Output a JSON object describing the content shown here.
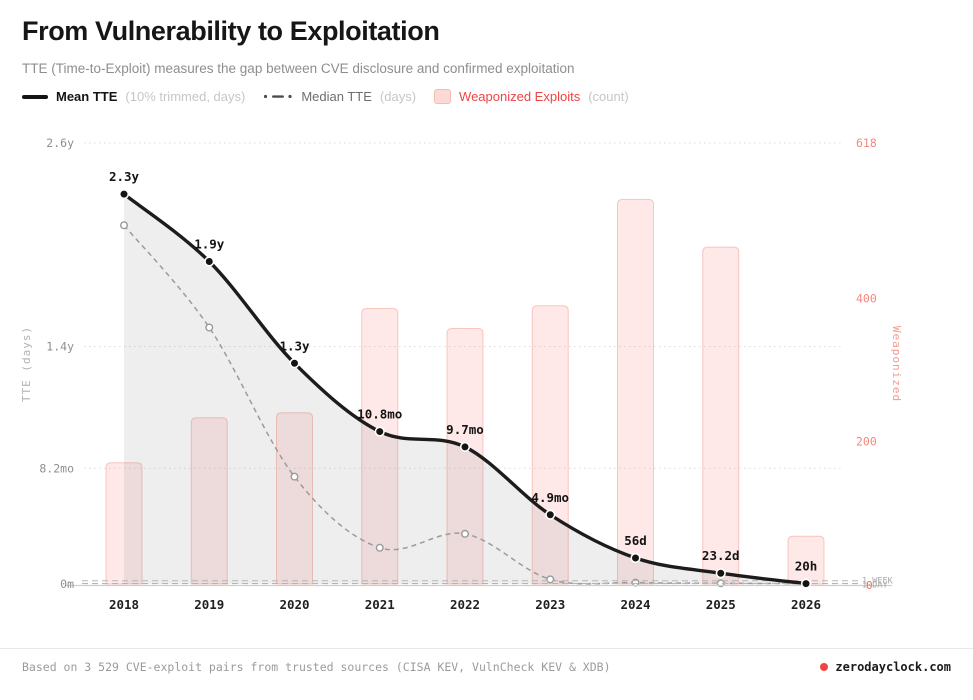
{
  "header": {
    "title": "From Vulnerability to Exploitation",
    "subtitle": "TTE (Time-to-Exploit) measures the gap between CVE disclosure and confirmed exploitation"
  },
  "legend": {
    "mean": {
      "label": "Mean TTE",
      "note": "(10% trimmed, days)"
    },
    "median": {
      "label": "Median TTE",
      "note": "(days)"
    },
    "weaponized": {
      "label": "Weaponized Exploits",
      "note": "(count)"
    }
  },
  "chart_data": {
    "type": "line+bar",
    "categories": [
      "2018",
      "2019",
      "2020",
      "2021",
      "2022",
      "2023",
      "2024",
      "2025",
      "2026"
    ],
    "series": [
      {
        "name": "Mean TTE",
        "type": "line",
        "unit": "days",
        "values": [
          839,
          694,
          475,
          328,
          295,
          149,
          56,
          23.2,
          0.83
        ],
        "point_labels": [
          "2.3y",
          "1.9y",
          "1.3y",
          "10.8mo",
          "9.7mo",
          "4.9mo",
          "56d",
          "23.2d",
          "20h"
        ]
      },
      {
        "name": "Median TTE",
        "type": "line",
        "unit": "days",
        "values": [
          772,
          552,
          231,
          78,
          108,
          10,
          3,
          1.5,
          0.8
        ]
      },
      {
        "name": "Weaponized Exploits",
        "type": "bar",
        "unit": "count",
        "values": [
          170,
          233,
          240,
          386,
          358,
          390,
          539,
          472,
          67
        ]
      }
    ],
    "left_axis": {
      "title": "TTE (days)",
      "ticks": [
        {
          "label": "2.6y",
          "days": 949
        },
        {
          "label": "1.4y",
          "days": 511
        },
        {
          "label": "8.2mo",
          "days": 249
        },
        {
          "label": "0m",
          "days": 0
        }
      ],
      "max_days": 949
    },
    "right_axis": {
      "title": "Weaponized",
      "ticks": [
        {
          "label": "618",
          "value": 618
        },
        {
          "label": "400",
          "value": 400
        },
        {
          "label": "200",
          "value": 200
        },
        {
          "label": "0",
          "value": 0
        }
      ],
      "max_value": 618
    },
    "reference_lines": [
      {
        "label": "1 WEEK",
        "days": 7
      },
      {
        "label": "1 DAY",
        "days": 1
      }
    ],
    "grid": true,
    "legend_position": "top"
  },
  "footer": {
    "source": "Based on 3 529 CVE-exploit pairs from trusted sources (CISA KEV, VulnCheck KEV & XDB)",
    "brand": "zerodayclock.com"
  },
  "colors": {
    "accent_red": "#ef4444",
    "salmon_axis": "#f4887d",
    "bar_fill": "rgba(248,113,113,0.16)",
    "bar_border": "rgba(240,120,105,0.38)",
    "mean_line": "#1c1c1c",
    "median_line": "#9b9b9b",
    "area_fill": "rgba(125,125,125,0.13)",
    "grid_line": "#dcdcdc",
    "baseline": "#cfcfcf",
    "ref_line": "#b5b5b5"
  }
}
